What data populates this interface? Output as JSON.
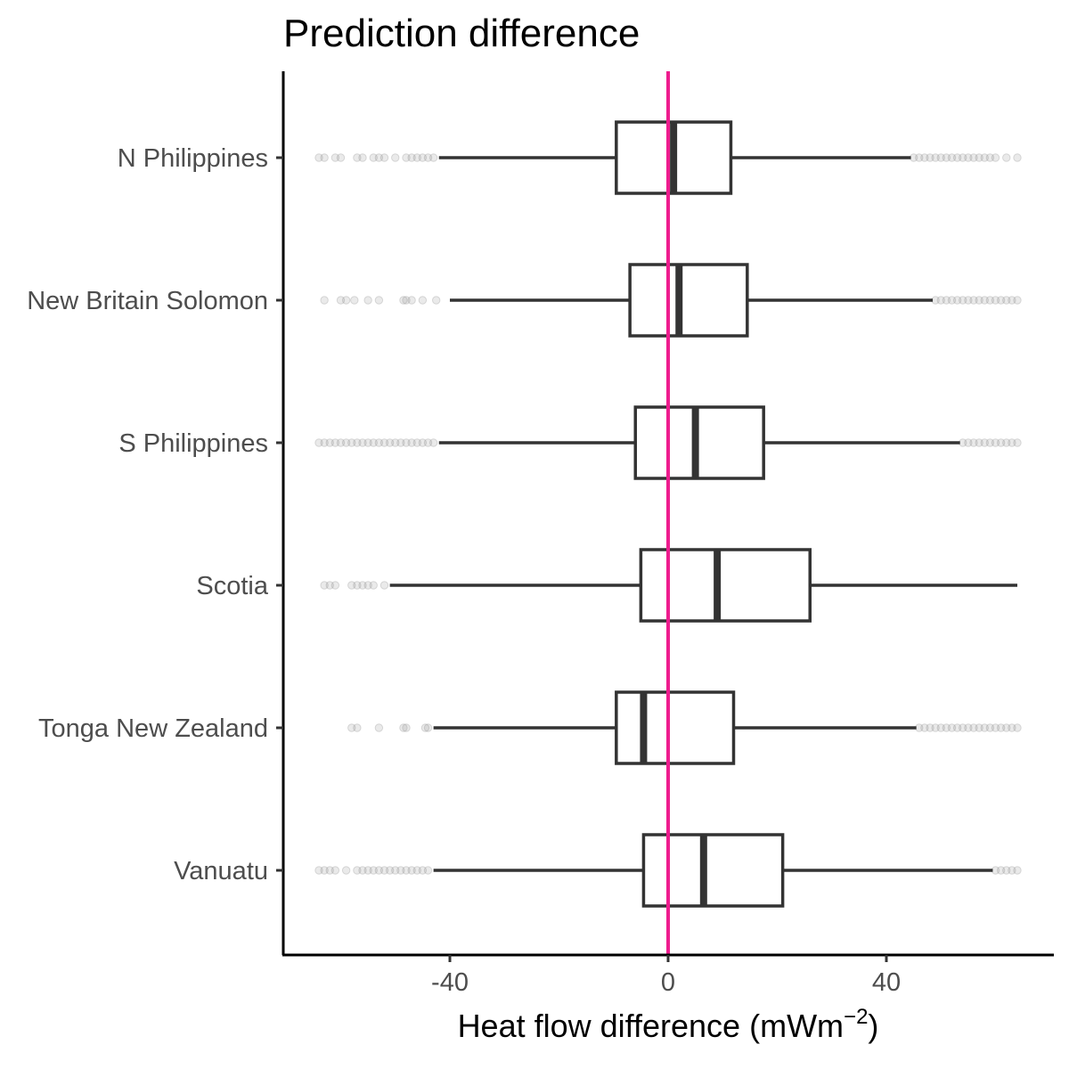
{
  "chart_data": {
    "type": "boxplot",
    "orientation": "horizontal",
    "title": "Prediction difference",
    "xlabel": {
      "main": "Heat flow difference",
      "unit_base": "mWm",
      "unit_exponent": "−2"
    },
    "ylabel": "",
    "xlim": [
      -70,
      70
    ],
    "x_ticks": [
      {
        "value": -40,
        "label": "-40"
      },
      {
        "value": 0,
        "label": "0"
      },
      {
        "value": 40,
        "label": "40"
      }
    ],
    "reference_line": {
      "value": 0,
      "color": "#ee1c8e"
    },
    "grid": false,
    "box_color": "#333333",
    "outlier_color": "#8c8c8c",
    "categories": [
      "N Philippines",
      "New Britain Solomon",
      "S Philippines",
      "Scotia",
      "Tonga New Zealand",
      "Vanuatu"
    ],
    "series": [
      {
        "category": "N Philippines",
        "whisker_low": -42,
        "q1": -9.5,
        "median": 1,
        "q3": 11.5,
        "whisker_high": 44.5,
        "outliers": [
          -64,
          -63,
          -61,
          -60,
          -57,
          -56,
          -54,
          -53,
          -52,
          -50,
          -48,
          -47,
          -46,
          -45,
          -44,
          -43,
          45,
          46,
          47,
          48,
          49,
          50,
          51,
          52,
          53,
          54,
          55,
          56,
          57,
          58,
          59,
          60,
          62,
          64
        ]
      },
      {
        "category": "New Britain Solomon",
        "whisker_low": -40,
        "q1": -7,
        "median": 2,
        "q3": 14.5,
        "whisker_high": 48.5,
        "outliers": [
          -63,
          -60,
          -59,
          -57.5,
          -55,
          -53,
          -48.5,
          -48,
          -47,
          -45,
          -42.5,
          49,
          50,
          51,
          52,
          53,
          54,
          55,
          56,
          57,
          58,
          59,
          60,
          61,
          62,
          63,
          64
        ]
      },
      {
        "category": "S Philippines",
        "whisker_low": -42,
        "q1": -6,
        "median": 5,
        "q3": 17.5,
        "whisker_high": 53.5,
        "outliers": [
          -64,
          -63,
          -62,
          -61,
          -60,
          -59,
          -58,
          -57,
          -56,
          -55,
          -54,
          -53,
          -52,
          -51,
          -50,
          -49,
          -48,
          -47,
          -46,
          -45,
          -44,
          -43,
          54,
          55,
          56,
          57,
          58,
          59,
          60,
          61,
          62,
          63,
          64
        ]
      },
      {
        "category": "Scotia",
        "whisker_low": -51,
        "q1": -5,
        "median": 9,
        "q3": 26,
        "whisker_high": 64,
        "outliers": [
          -63,
          -62,
          -61,
          -58,
          -57,
          -56,
          -55,
          -54,
          -52
        ]
      },
      {
        "category": "Tonga New Zealand",
        "whisker_low": -43,
        "q1": -9.5,
        "median": -4.5,
        "q3": 12,
        "whisker_high": 45.5,
        "outliers": [
          -58,
          -57,
          -53,
          -48.5,
          -48,
          -44.5,
          -44,
          46,
          47,
          48,
          49,
          50,
          51,
          52,
          53,
          54,
          55,
          56,
          57,
          58,
          59,
          60,
          61,
          62,
          63,
          64
        ]
      },
      {
        "category": "Vanuatu",
        "whisker_low": -43,
        "q1": -4.5,
        "median": 6.5,
        "q3": 21,
        "whisker_high": 59.5,
        "outliers": [
          -64,
          -63,
          -62,
          -61,
          -59,
          -57,
          -56,
          -55,
          -54,
          -53,
          -52,
          -51,
          -50,
          -49,
          -48,
          -47,
          -46,
          -45,
          -44,
          60,
          61,
          62,
          63,
          64
        ]
      }
    ]
  }
}
